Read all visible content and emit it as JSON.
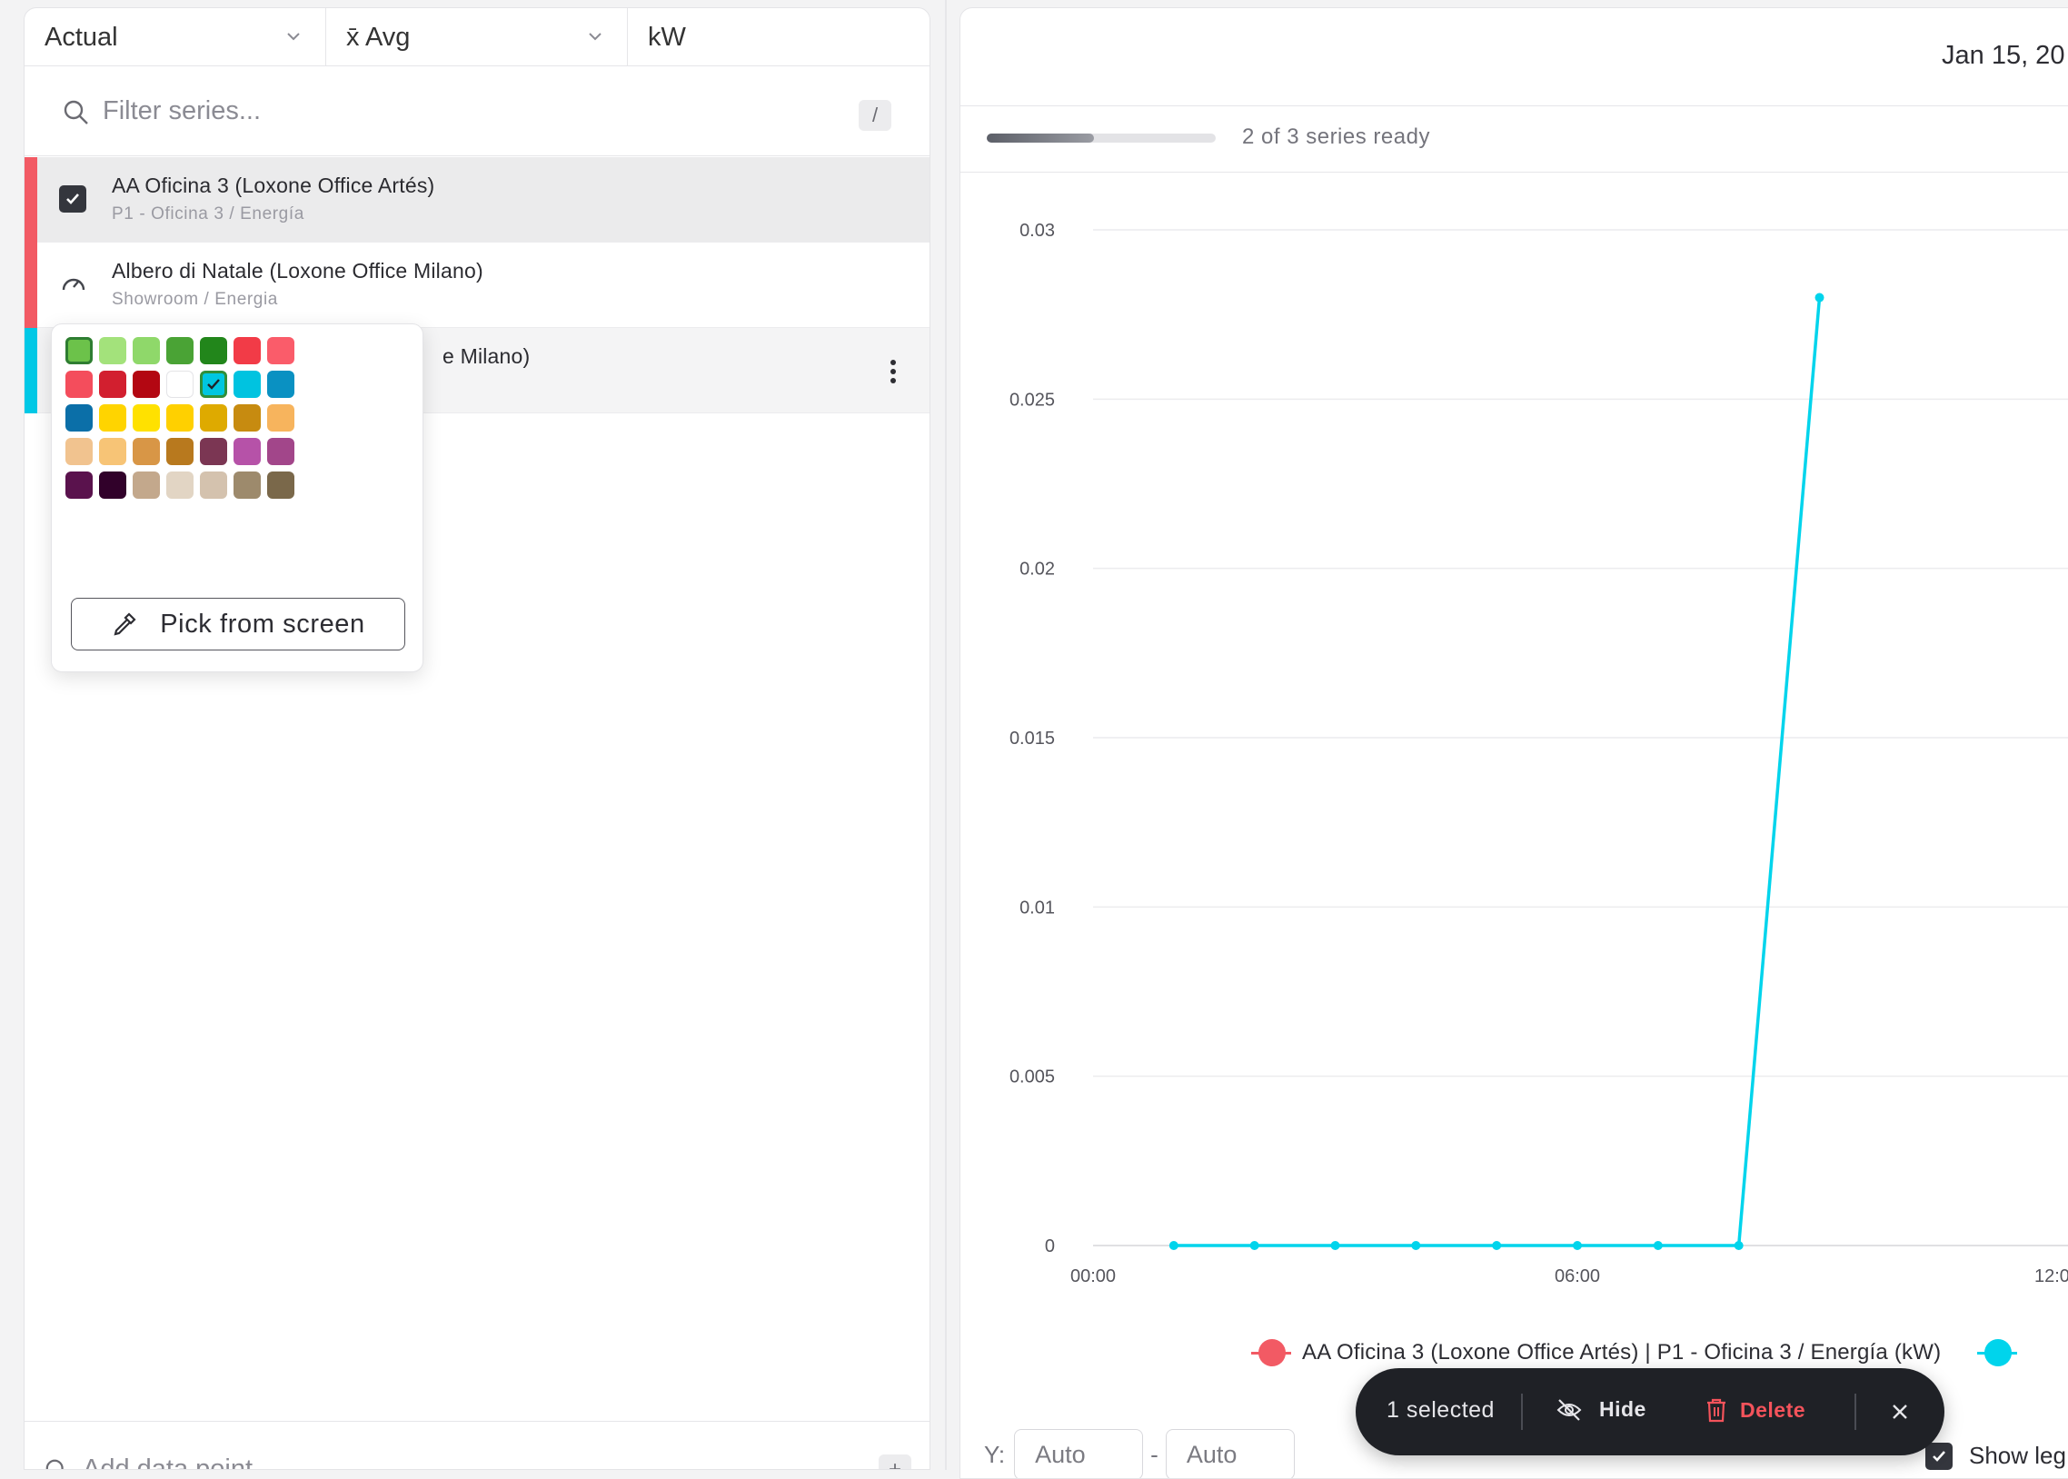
{
  "toolbar": {
    "mode": "Actual",
    "aggregation": "x̄ Avg",
    "unit": "kW"
  },
  "filter": {
    "placeholder": "Filter series...",
    "shortcut": "/"
  },
  "series": [
    {
      "name": "AA Oficina 3 (Loxone Office Artés)",
      "path": "P1 - Oficina 3 / Energía",
      "color": "#f25a64",
      "checked": true
    },
    {
      "name": "Albero di Natale (Loxone Office Milano)",
      "path": "Showroom / Energia",
      "color": "#f25a64",
      "icon": "gauge-icon"
    },
    {
      "name_visible_fragment": "e Milano)",
      "color": "#00c8e6",
      "menu_icon": "kebab-icon"
    }
  ],
  "color_picker": {
    "swatches": [
      "#6cc24a",
      "#a3e27b",
      "#8fd86a",
      "#4aa335",
      "#22861b",
      "#f23b47",
      "#fa5c6a",
      "#f44d5c",
      "#d21f2f",
      "#b30712",
      "#ffffff",
      "#00c6e0",
      "#00c3e0",
      "#0a91c2",
      "#0b6fa8",
      "#ffd400",
      "#ffe100",
      "#ffd000",
      "#deaa00",
      "#c78b10",
      "#f7b45d",
      "#f1c38f",
      "#f7c476",
      "#d89646",
      "#b8791e",
      "#7b3653",
      "#b652a8",
      "#a2468a",
      "#5a124d",
      "#31012a",
      "#c3a88c",
      "#e2d5c4",
      "#d4c2ae",
      "#9d8a6c",
      "#7a684a"
    ],
    "selected_index": 0,
    "checked_index": 11,
    "pick_label": "Pick from screen"
  },
  "add_data_point": {
    "placeholder": "Add data point...",
    "button": "+"
  },
  "chart_header": {
    "date": "Jan 15, 20",
    "progress_ready": 2,
    "progress_total": 3,
    "progress_text": "2 of 3 series ready"
  },
  "chart_data": {
    "type": "line",
    "y_ticks": [
      "0",
      "0.005",
      "0.01",
      "0.015",
      "0.02",
      "0.025",
      "0.03"
    ],
    "x_ticks": [
      "00:00",
      "06:00",
      "12:0"
    ],
    "ylim": [
      0,
      0.03
    ],
    "grid": true,
    "series": [
      {
        "name": "Albero di Natale (Loxone Office Milano)",
        "color": "#00d4ec",
        "points": [
          {
            "x": "01:00",
            "y": 0
          },
          {
            "x": "02:00",
            "y": 0
          },
          {
            "x": "03:00",
            "y": 0
          },
          {
            "x": "04:00",
            "y": 0
          },
          {
            "x": "05:00",
            "y": 0
          },
          {
            "x": "06:00",
            "y": 0
          },
          {
            "x": "07:00",
            "y": 0
          },
          {
            "x": "08:00",
            "y": 0
          },
          {
            "x": "09:00",
            "y": 0.028
          }
        ]
      }
    ]
  },
  "legend": [
    {
      "label": "AA Oficina 3 (Loxone Office Artés) | P1 - Oficina 3 / Energía (kW)",
      "color": "#f25a64"
    },
    {
      "label": "",
      "color": "#00d4ec"
    }
  ],
  "y_range": {
    "label": "Y:",
    "min": "Auto",
    "max": "Auto",
    "separator": "-"
  },
  "show_legend": {
    "label": "Show leg",
    "checked": true
  },
  "selection_bar": {
    "count": "1 selected",
    "hide": "Hide",
    "delete": "Delete"
  }
}
